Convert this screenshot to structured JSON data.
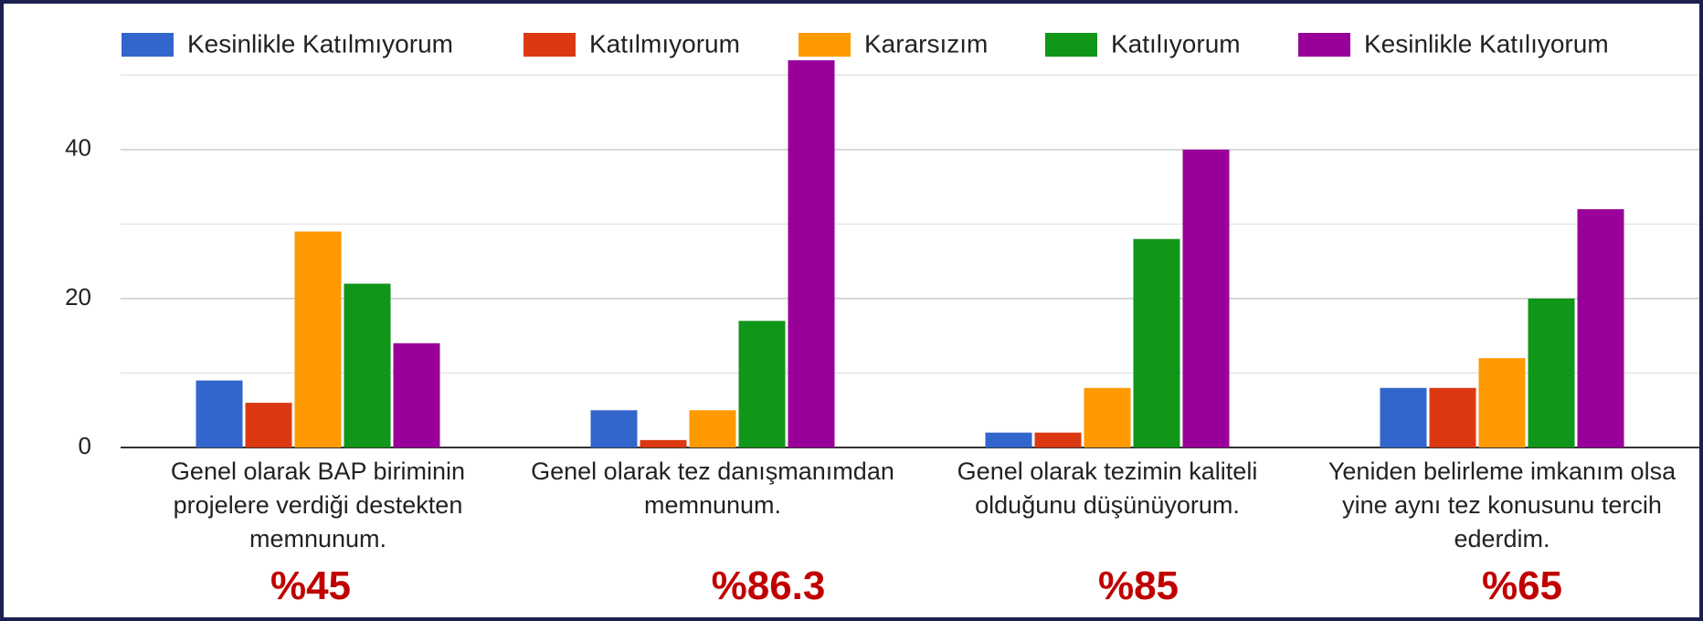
{
  "chart_data": {
    "type": "bar",
    "categories": [
      "Genel olarak BAP biriminin projelere verdiği destekten memnunum.",
      "Genel olarak tez danışmanımdan memnunum.",
      "Genel olarak tezimin kaliteli olduğunu düşünüyorum.",
      "Yeniden belirleme imkanım olsa yine aynı tez konusunu tercih ederdim."
    ],
    "series": [
      {
        "name": "Kesinlikle Katılmıyorum",
        "color": "#3366cc",
        "values": [
          9,
          5,
          2,
          8
        ]
      },
      {
        "name": "Katılmıyorum",
        "color": "#dc3912",
        "values": [
          6,
          1,
          2,
          8
        ]
      },
      {
        "name": "Kararsızım",
        "color": "#ff9900",
        "values": [
          29,
          5,
          8,
          12
        ]
      },
      {
        "name": "Katılıyorum",
        "color": "#109618",
        "values": [
          22,
          17,
          28,
          20
        ]
      },
      {
        "name": "Kesinlikle Katılıyorum",
        "color": "#990099",
        "values": [
          14,
          52,
          40,
          32
        ]
      }
    ],
    "annotations": [
      "%45",
      "%86.3",
      "%85",
      "%65"
    ],
    "ylim": [
      0,
      52
    ],
    "yticks": [
      0,
      20,
      40
    ],
    "yminor": [
      10,
      30,
      50
    ],
    "grid": true
  }
}
